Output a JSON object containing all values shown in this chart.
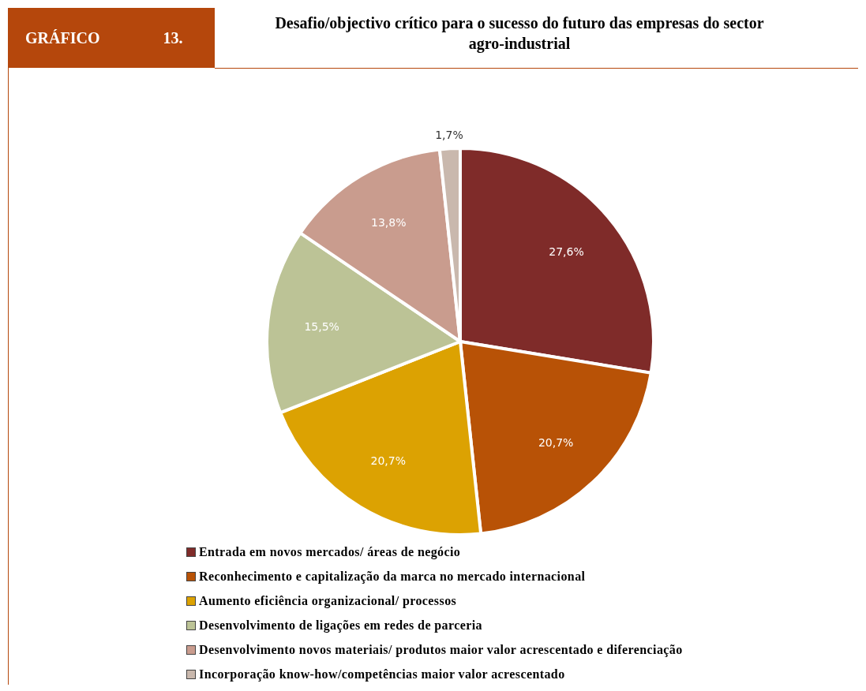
{
  "chart_data": {
    "type": "pie",
    "title": "Desafio/objectivo crítico para o sucesso do futuro das empresas do sector agro-industrial",
    "annotations": [
      "GRÁFICO",
      "13."
    ],
    "categories": [
      "Entrada em novos mercados/ áreas de negócio",
      "Reconhecimento e capitalização da marca no mercado internacional",
      "Aumento eficiência organizacional/ processos",
      "Desenvolvimento de ligações em redes de parceria",
      "Desenvolvimento novos materiais/ produtos maior valor acrescentado e diferenciação",
      "Incorporação know-how/competências maior valor acrescentado"
    ],
    "values": [
      27.6,
      20.7,
      20.7,
      15.5,
      13.8,
      1.7
    ],
    "value_labels": [
      "27,6%",
      "20,7%",
      "20,7%",
      "15,5%",
      "13,8%",
      "1,7%"
    ],
    "colors": [
      "#7f2b29",
      "#b85206",
      "#dca202",
      "#bcc396",
      "#c99c8e",
      "#c9b8ad"
    ],
    "legend": "bottom"
  }
}
